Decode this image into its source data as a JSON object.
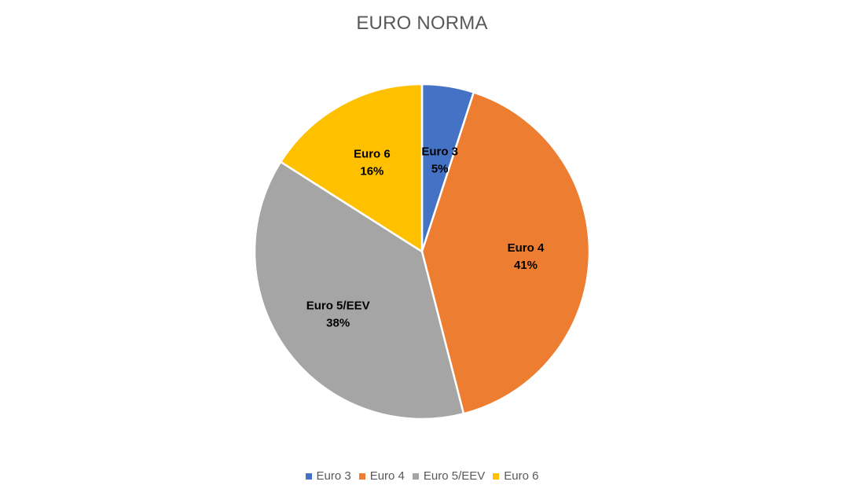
{
  "chart_data": {
    "type": "pie",
    "title": "EURO NORMA",
    "categories": [
      "Euro 3",
      "Euro 4",
      "Euro 5/EEV",
      "Euro 6"
    ],
    "values": [
      5,
      41,
      38,
      16
    ],
    "value_labels": [
      "5%",
      "41%",
      "38%",
      "16%"
    ],
    "colors": [
      "#4472C4",
      "#ED7D31",
      "#A5A5A5",
      "#FFC000"
    ],
    "legend_position": "bottom",
    "start_angle_deg": 0,
    "direction": "clockwise"
  }
}
